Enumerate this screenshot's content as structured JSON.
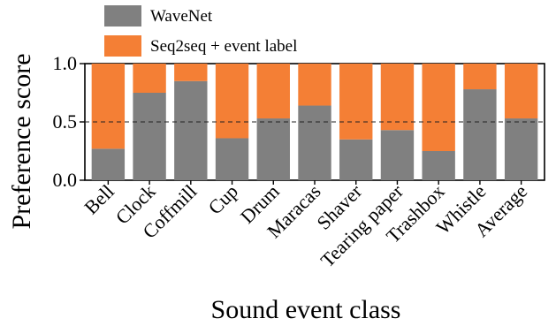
{
  "chart_data": {
    "type": "bar",
    "stacked": true,
    "xlabel": "Sound event class",
    "ylabel": "Preference score",
    "ylim": [
      0,
      1.0
    ],
    "yticks": [
      "0.0",
      "0.5",
      "1.0"
    ],
    "reference_line": {
      "y": 0.5,
      "style": "dashed"
    },
    "categories": [
      "Bell",
      "Clock",
      "Coffmill",
      "Cup",
      "Drum",
      "Maracas",
      "Shaver",
      "Tearing paper",
      "Trashbox",
      "Whistle",
      "Average"
    ],
    "series": [
      {
        "name": "WaveNet",
        "color": "#808080",
        "values": [
          0.27,
          0.75,
          0.85,
          0.36,
          0.53,
          0.64,
          0.35,
          0.43,
          0.25,
          0.78,
          0.53
        ]
      },
      {
        "name": "Seq2seq + event label",
        "color": "#f47f35",
        "values": [
          0.73,
          0.25,
          0.15,
          0.64,
          0.47,
          0.36,
          0.65,
          0.57,
          0.75,
          0.22,
          0.47
        ]
      }
    ],
    "legend_position": "top"
  }
}
